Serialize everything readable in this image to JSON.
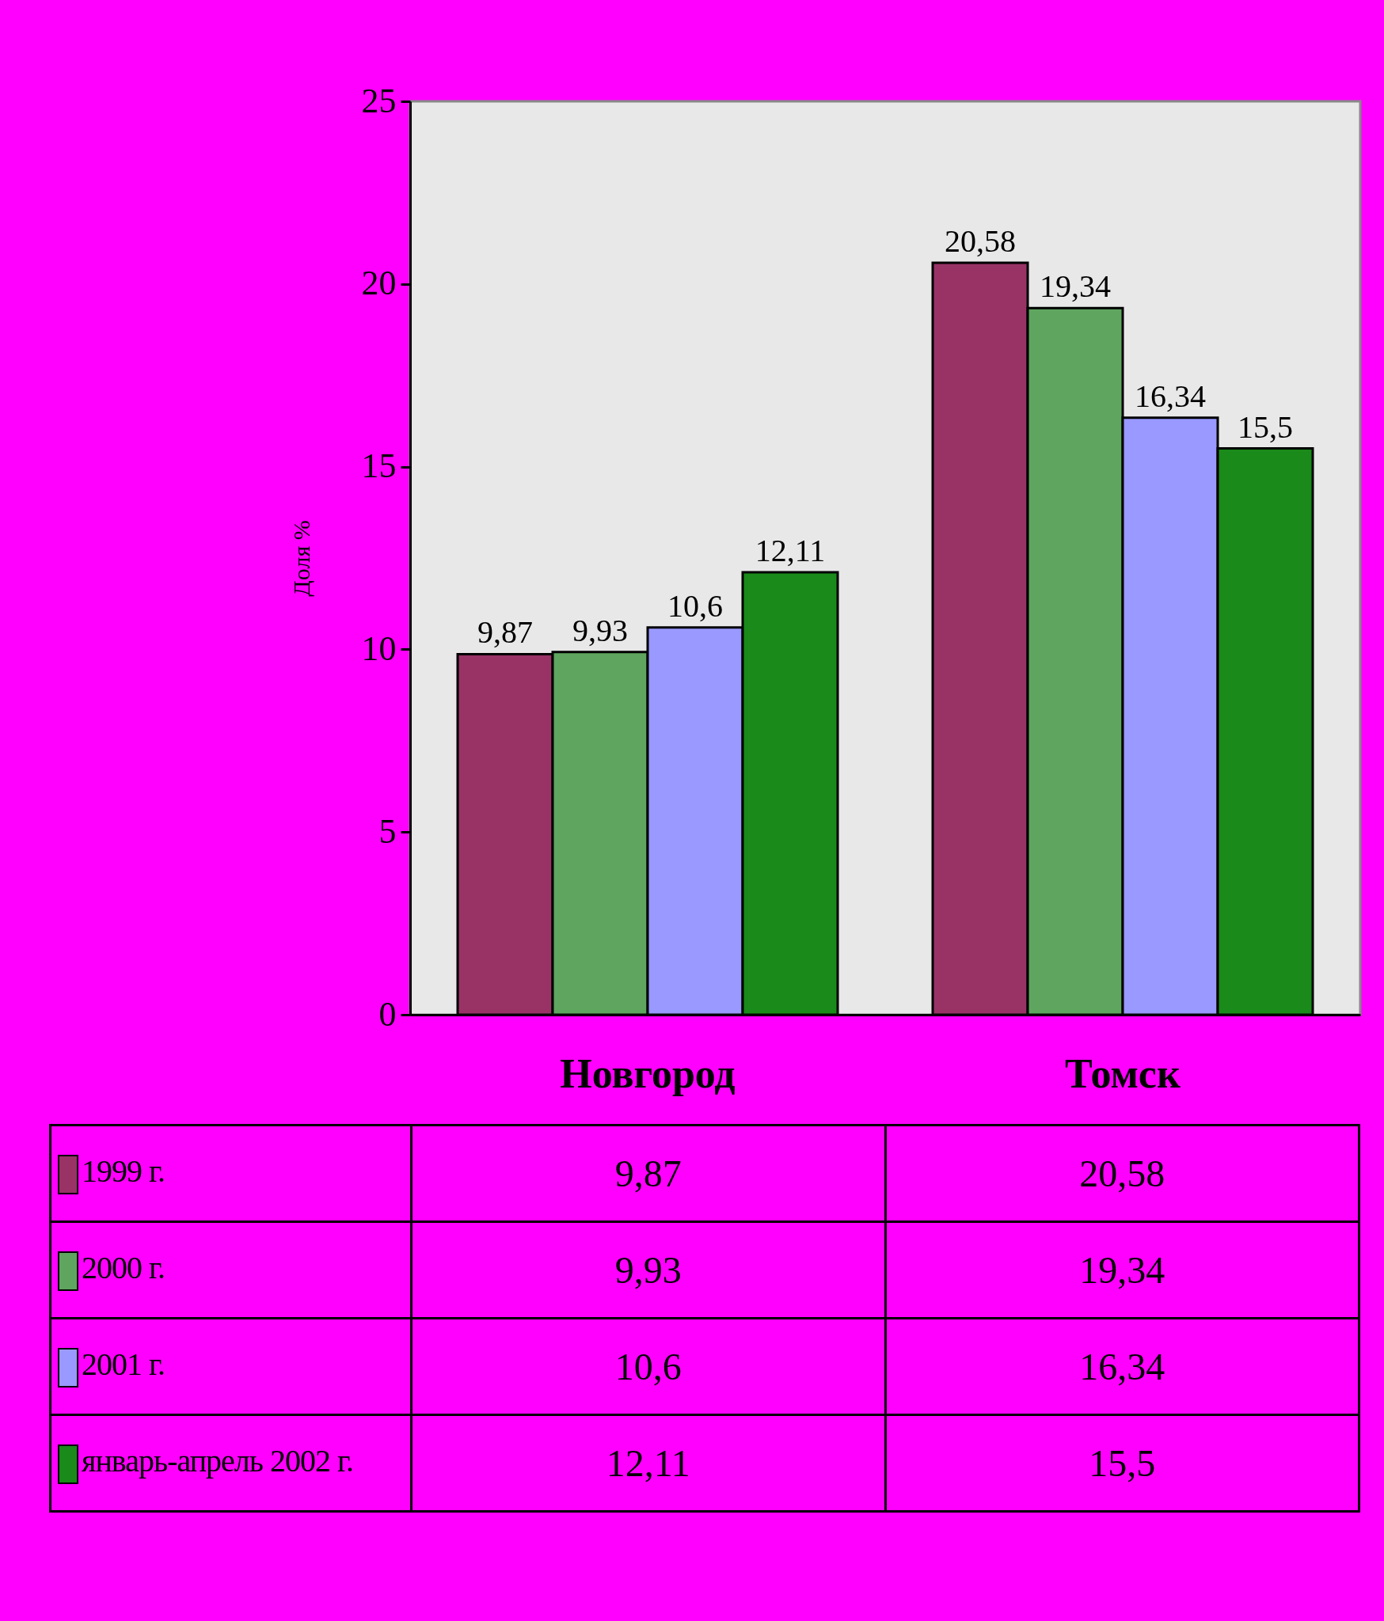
{
  "chart_data": {
    "type": "bar",
    "ylabel": "Доля %",
    "categories": [
      "Новгород",
      "Томск"
    ],
    "series": [
      {
        "name": "1999 г.",
        "color": "#993366",
        "values": [
          9.87,
          20.58
        ],
        "value_labels": [
          "9,87",
          "20,58"
        ]
      },
      {
        "name": "2000 г.",
        "color": "#5fa55f",
        "values": [
          9.93,
          19.34
        ],
        "value_labels": [
          "9,93",
          "19,34"
        ]
      },
      {
        "name": "2001 г.",
        "color": "#9999ff",
        "values": [
          10.6,
          16.34
        ],
        "value_labels": [
          "10,6",
          "16,34"
        ]
      },
      {
        "name": "январь-апрель 2002 г.",
        "color": "#1a8a1a",
        "values": [
          12.11,
          15.5
        ],
        "value_labels": [
          "12,11",
          "15,5"
        ]
      }
    ],
    "ylim": [
      0,
      25
    ],
    "yticks": [
      0,
      5,
      10,
      15,
      20,
      25
    ],
    "legend": "bottom left"
  }
}
